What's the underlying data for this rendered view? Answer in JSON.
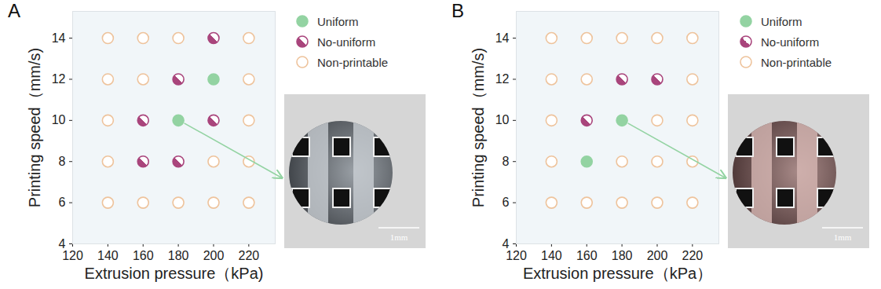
{
  "chart_data": [
    {
      "type": "scatter",
      "title": "A",
      "x_label": "Extrusion pressure（kPa)",
      "y_label": "Printing speed（mm/s)",
      "xlim": [
        120,
        235
      ],
      "xticks": [
        120,
        140,
        160,
        180,
        200,
        220
      ],
      "ylim": [
        4,
        15.3
      ],
      "yticks": [
        4,
        6,
        8,
        10,
        12,
        14
      ],
      "grid": false,
      "legend": "right",
      "series": [
        {
          "name": "Uniform",
          "color": "#93d3a2",
          "marker": "filled",
          "values": [
            [
              200,
              12
            ],
            [
              180,
              10
            ]
          ]
        },
        {
          "name": "No-uniform",
          "color": "#a9457c",
          "marker": "half",
          "values": [
            [
              200,
              14
            ],
            [
              180,
              12
            ],
            [
              160,
              10
            ],
            [
              200,
              10
            ],
            [
              160,
              8
            ],
            [
              180,
              8
            ]
          ]
        },
        {
          "name": "Non-printable",
          "color": "#eec39c",
          "marker": "hollow",
          "values": [
            [
              140,
              14
            ],
            [
              160,
              14
            ],
            [
              180,
              14
            ],
            [
              220,
              14
            ],
            [
              140,
              12
            ],
            [
              160,
              12
            ],
            [
              220,
              12
            ],
            [
              140,
              10
            ],
            [
              220,
              10
            ],
            [
              140,
              8
            ],
            [
              200,
              8
            ],
            [
              220,
              8
            ],
            [
              140,
              6
            ],
            [
              160,
              6
            ],
            [
              180,
              6
            ],
            [
              200,
              6
            ],
            [
              220,
              6
            ]
          ]
        }
      ],
      "annotations": [
        {
          "text": "1mm",
          "x": 180,
          "y": 10
        }
      ]
    },
    {
      "type": "scatter",
      "title": "B",
      "x_label": "Extrusion pressure（kPa）",
      "y_label": "Printing speed（mm/s)",
      "xlim": [
        120,
        235
      ],
      "xticks": [
        120,
        140,
        160,
        180,
        200,
        220
      ],
      "ylim": [
        4,
        15.3
      ],
      "yticks": [
        4,
        6,
        8,
        10,
        12,
        14
      ],
      "grid": false,
      "legend": "right",
      "series": [
        {
          "name": "Uniform",
          "color": "#93d3a2",
          "marker": "filled",
          "values": [
            [
              180,
              10
            ],
            [
              160,
              8
            ]
          ]
        },
        {
          "name": "No-uniform",
          "color": "#a9457c",
          "marker": "half",
          "values": [
            [
              180,
              12
            ],
            [
              200,
              12
            ],
            [
              160,
              10
            ]
          ]
        },
        {
          "name": "Non-printable",
          "color": "#eec39c",
          "marker": "hollow",
          "values": [
            [
              140,
              14
            ],
            [
              160,
              14
            ],
            [
              180,
              14
            ],
            [
              200,
              14
            ],
            [
              220,
              14
            ],
            [
              140,
              12
            ],
            [
              160,
              12
            ],
            [
              220,
              12
            ],
            [
              140,
              10
            ],
            [
              200,
              10
            ],
            [
              220,
              10
            ],
            [
              140,
              8
            ],
            [
              180,
              8
            ],
            [
              200,
              8
            ],
            [
              220,
              8
            ],
            [
              140,
              6
            ],
            [
              160,
              6
            ],
            [
              180,
              6
            ],
            [
              200,
              6
            ],
            [
              220,
              6
            ]
          ]
        }
      ],
      "annotations": [
        {
          "text": "1mm",
          "x": 180,
          "y": 10
        }
      ]
    }
  ]
}
